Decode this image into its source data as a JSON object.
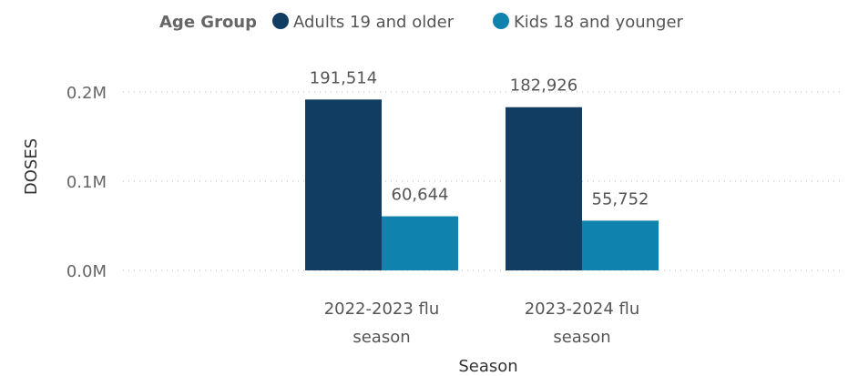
{
  "chart_data": {
    "type": "bar",
    "legend_title": "Age Group",
    "categories": [
      [
        "2022-2023 flu",
        "season"
      ],
      [
        "2023-2024 flu",
        "season"
      ]
    ],
    "series": [
      {
        "name": "Adults 19 and older",
        "color": "#123d63",
        "values": [
          191514,
          182926
        ],
        "labels": [
          "191,514",
          "182,926"
        ]
      },
      {
        "name": "Kids 18 and younger",
        "color": "#0f82ad",
        "values": [
          60644,
          55752
        ],
        "labels": [
          "60,644",
          "55,752"
        ]
      }
    ],
    "xlabel": "Season",
    "ylabel": "DOSES",
    "yticks": [
      {
        "value": 0,
        "label": "0.0M"
      },
      {
        "value": 100000,
        "label": "0.1M"
      },
      {
        "value": 200000,
        "label": "0.2M"
      }
    ],
    "ylim": [
      0,
      200000
    ],
    "grid": true,
    "legend_position": "top"
  }
}
